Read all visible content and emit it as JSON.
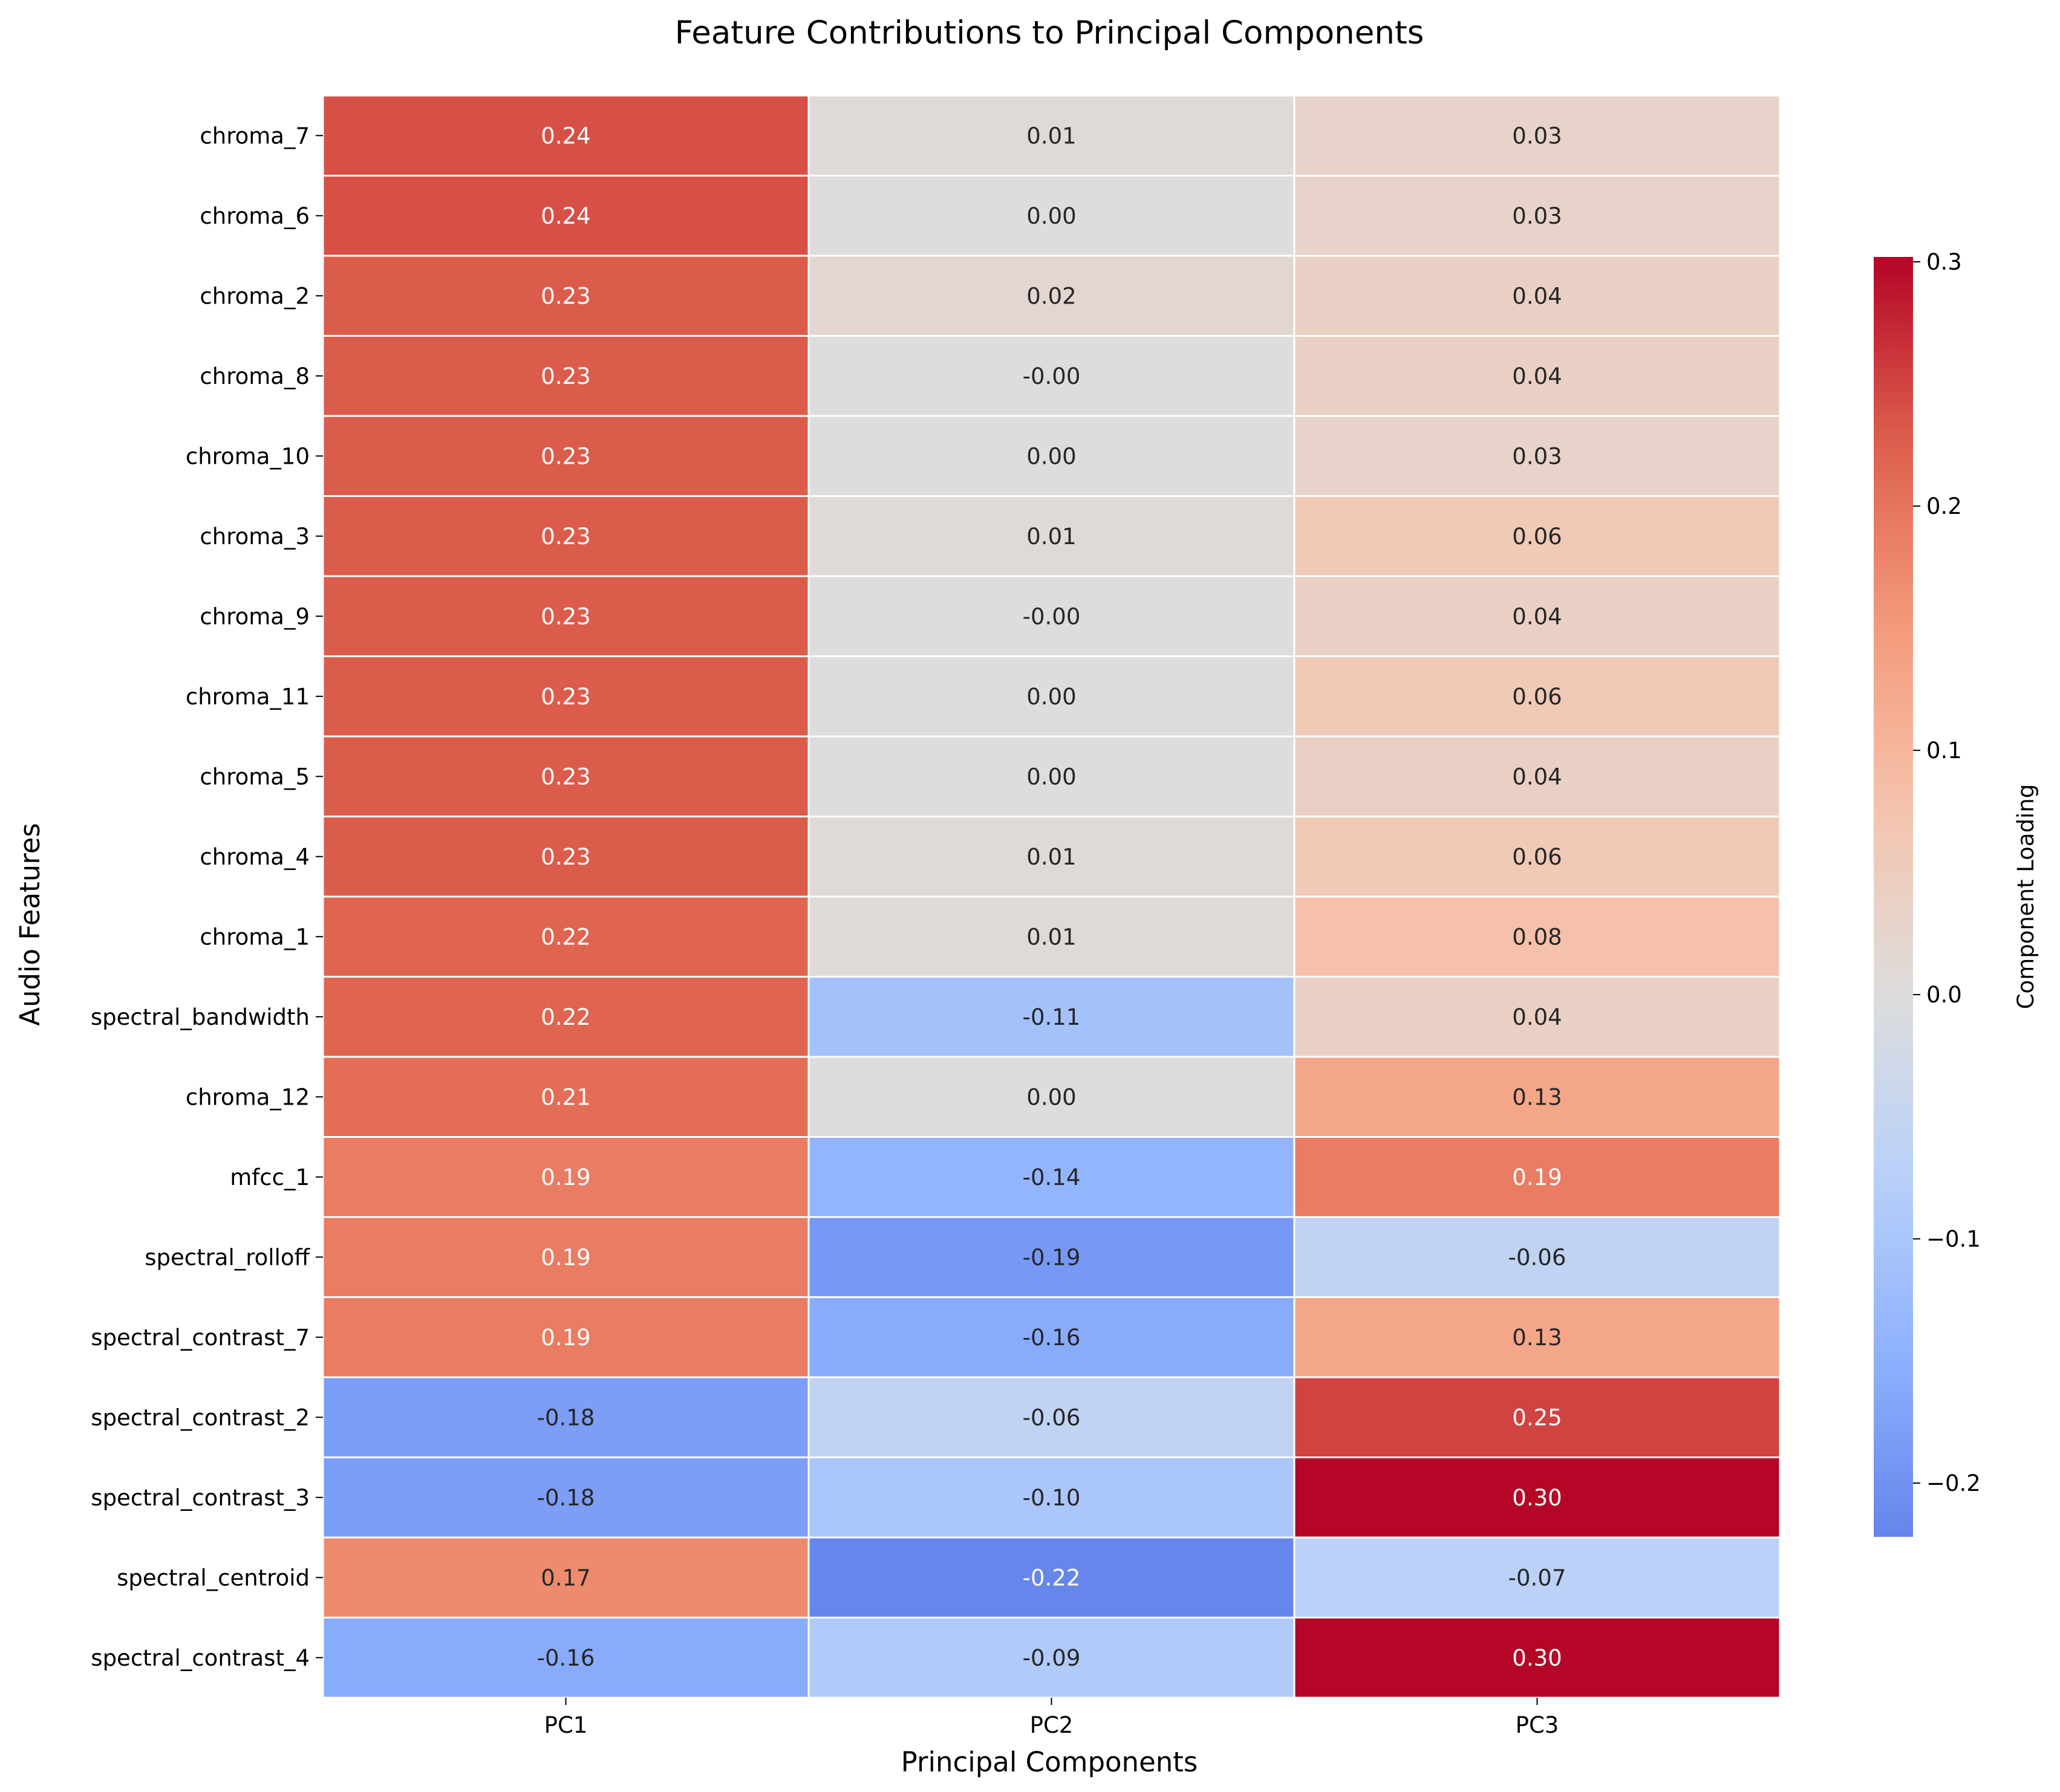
{
  "chart_data": {
    "type": "heatmap",
    "title": "Feature Contributions to Principal Components",
    "xlabel": "Principal Components",
    "ylabel": "Audio Features",
    "columns": [
      "PC1",
      "PC2",
      "PC3"
    ],
    "rows": [
      "chroma_7",
      "chroma_6",
      "chroma_2",
      "chroma_8",
      "chroma_10",
      "chroma_3",
      "chroma_9",
      "chroma_11",
      "chroma_5",
      "chroma_4",
      "chroma_1",
      "spectral_bandwidth",
      "chroma_12",
      "mfcc_1",
      "spectral_rolloff",
      "spectral_contrast_7",
      "spectral_contrast_2",
      "spectral_contrast_3",
      "spectral_centroid",
      "spectral_contrast_4"
    ],
    "values": [
      [
        0.24,
        0.01,
        0.03
      ],
      [
        0.24,
        0.0,
        0.03
      ],
      [
        0.23,
        0.02,
        0.04
      ],
      [
        0.23,
        -0.001,
        0.04
      ],
      [
        0.23,
        0.0,
        0.03
      ],
      [
        0.23,
        0.01,
        0.06
      ],
      [
        0.23,
        -0.001,
        0.04
      ],
      [
        0.23,
        0.0,
        0.06
      ],
      [
        0.23,
        0.0,
        0.04
      ],
      [
        0.23,
        0.01,
        0.06
      ],
      [
        0.22,
        0.01,
        0.08
      ],
      [
        0.22,
        -0.11,
        0.04
      ],
      [
        0.21,
        0.0,
        0.13
      ],
      [
        0.19,
        -0.14,
        0.19
      ],
      [
        0.19,
        -0.19,
        -0.06
      ],
      [
        0.19,
        -0.16,
        0.13
      ],
      [
        -0.18,
        -0.06,
        0.25
      ],
      [
        -0.18,
        -0.1,
        0.3
      ],
      [
        0.17,
        -0.22,
        -0.07
      ],
      [
        -0.16,
        -0.09,
        0.3
      ]
    ],
    "cell_labels": [
      [
        "0.24",
        "0.01",
        "0.03"
      ],
      [
        "0.24",
        "0.00",
        "0.03"
      ],
      [
        "0.23",
        "0.02",
        "0.04"
      ],
      [
        "0.23",
        "-0.00",
        "0.04"
      ],
      [
        "0.23",
        "0.00",
        "0.03"
      ],
      [
        "0.23",
        "0.01",
        "0.06"
      ],
      [
        "0.23",
        "-0.00",
        "0.04"
      ],
      [
        "0.23",
        "0.00",
        "0.06"
      ],
      [
        "0.23",
        "0.00",
        "0.04"
      ],
      [
        "0.23",
        "0.01",
        "0.06"
      ],
      [
        "0.22",
        "0.01",
        "0.08"
      ],
      [
        "0.22",
        "-0.11",
        "0.04"
      ],
      [
        "0.21",
        "0.00",
        "0.13"
      ],
      [
        "0.19",
        "-0.14",
        "0.19"
      ],
      [
        "0.19",
        "-0.19",
        "-0.06"
      ],
      [
        "0.19",
        "-0.16",
        "0.13"
      ],
      [
        "-0.18",
        "-0.06",
        "0.25"
      ],
      [
        "-0.18",
        "-0.10",
        "0.30"
      ],
      [
        "0.17",
        "-0.22",
        "-0.07"
      ],
      [
        "-0.16",
        "-0.09",
        "0.30"
      ]
    ],
    "colormap": "coolwarm",
    "vmin": -0.222,
    "vmax": 0.302,
    "colorbar": {
      "label": "Component Loading",
      "ticks": [
        -0.2,
        -0.1,
        0.0,
        0.1,
        0.2,
        0.3
      ],
      "tick_labels": [
        "−0.2",
        "−0.1",
        "0.0",
        "0.1",
        "0.2",
        "0.3"
      ]
    },
    "grid": true,
    "cell_border_color": "#ffffff"
  }
}
